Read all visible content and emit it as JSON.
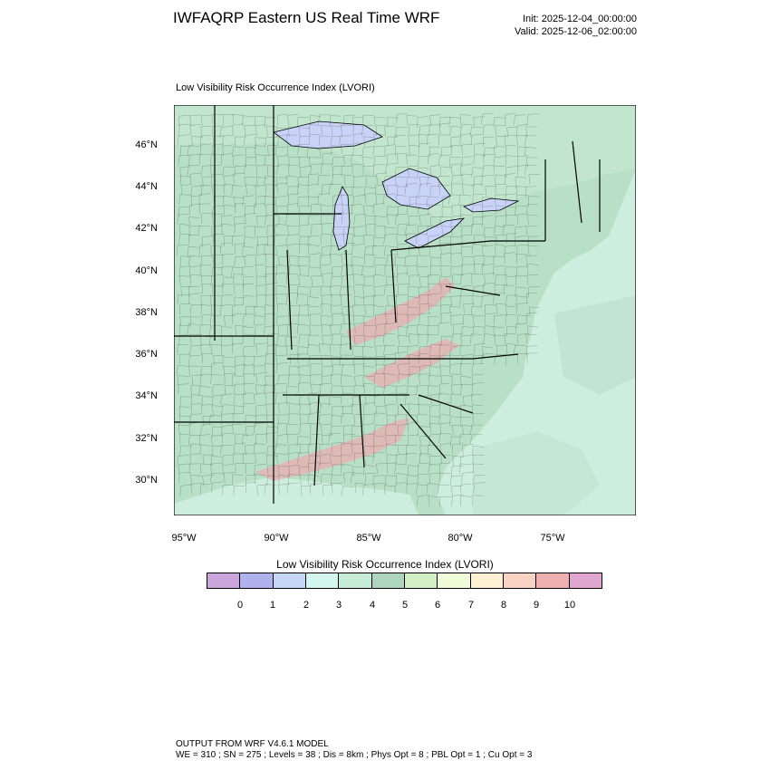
{
  "header": {
    "title": "IWFAQRP Eastern US Real Time WRF",
    "init": "Init: 2025-12-04_00:00:00",
    "valid": "Valid: 2025-12-06_02:00:00"
  },
  "map": {
    "subtitle": "Low Visibility Risk Occurrence Index   (LVORI)",
    "lat_labels": [
      "46°N",
      "44°N",
      "42°N",
      "40°N",
      "38°N",
      "36°N",
      "34°N",
      "32°N",
      "30°N"
    ],
    "lon_labels": [
      "95°W",
      "90°W",
      "85°W",
      "80°W",
      "75°W"
    ],
    "colors": {
      "land": "#b7e0c6",
      "water": "#cdeede",
      "lake": "#c9d3f7",
      "boundary": "#000000",
      "elevated": "#e5b3b3"
    }
  },
  "colorbar": {
    "title": "Low Visibility Risk Occurrence Index  (LVORI)",
    "colors": [
      "#cba6dc",
      "#b0b2ee",
      "#c6d6f7",
      "#d3f7ee",
      "#c6ecd6",
      "#aed5bd",
      "#d3efc6",
      "#effbd9",
      "#fdf0d3",
      "#f8d2c3",
      "#eeb0b1",
      "#dfa6cf"
    ],
    "labels": [
      "0",
      "1",
      "2",
      "3",
      "4",
      "5",
      "6",
      "7",
      "8",
      "9",
      "10"
    ]
  },
  "footer": {
    "line1": "OUTPUT FROM WRF V4.6.1 MODEL",
    "line2": "WE = 310 ; SN = 275 ; Levels = 38 ; Dis = 8km ; Phys Opt = 8 ; PBL Opt = 1 ; Cu Opt = 3"
  }
}
